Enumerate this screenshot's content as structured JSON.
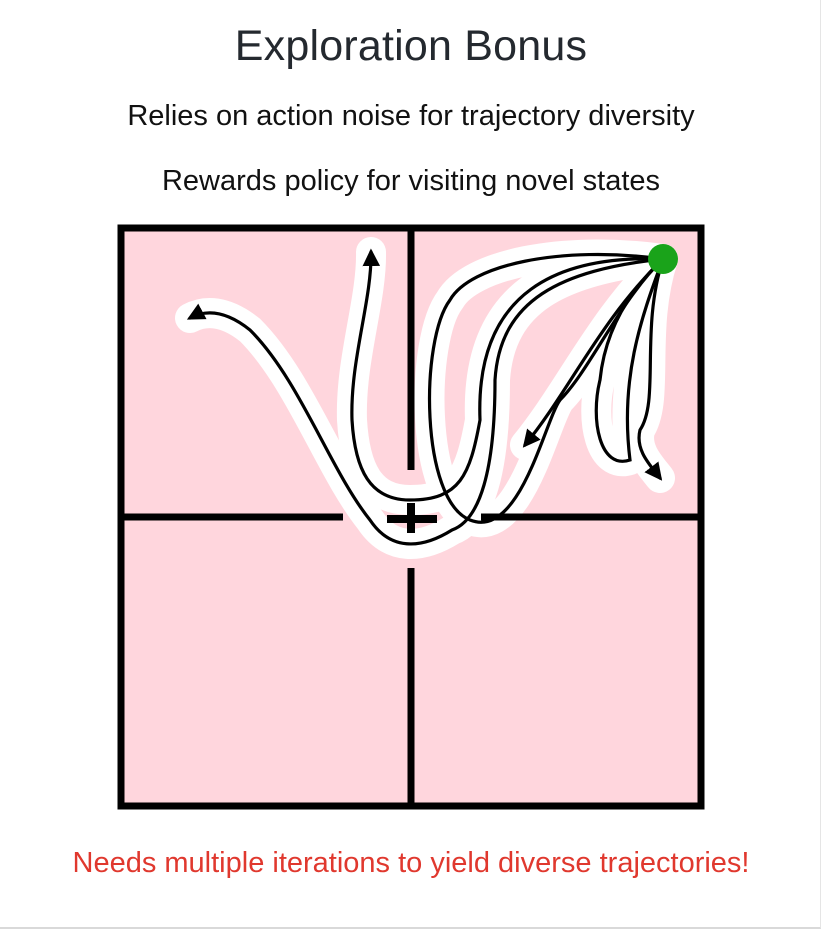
{
  "title": "Exploration Bonus",
  "subtitle_1": "Relies on action noise for trajectory diversity",
  "subtitle_2": "Rewards policy for visiting novel states",
  "note": "Needs multiple iterations to yield diverse trajectories!",
  "colors": {
    "room_fill": "#ffd6dd",
    "wall": "#000000",
    "goal": "#1aa31a",
    "trail_halo": "#ffffff",
    "trajectory": "#000000",
    "note_text": "#e0382e"
  },
  "icons": {
    "start": "plus-icon",
    "goal": "goal-dot-icon"
  },
  "trajectory_count": 5
}
